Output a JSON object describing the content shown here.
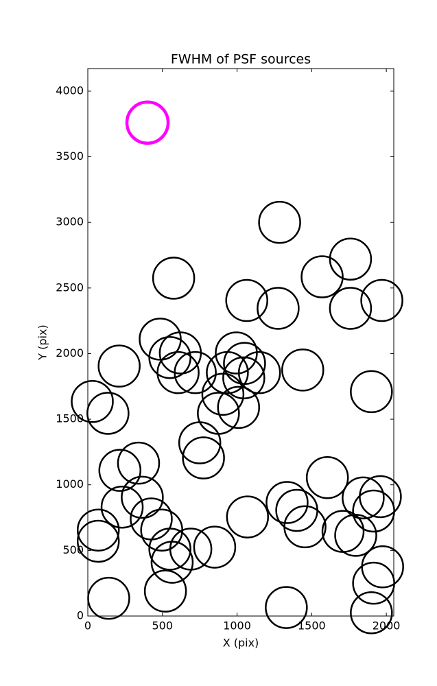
{
  "chart_data": {
    "type": "scatter",
    "title": "FWHM of PSF sources",
    "x_label": "X (pix)",
    "y_label": "Y (pix)",
    "xlim": [
      0,
      2050
    ],
    "ylim": [
      0,
      4172
    ],
    "xticks": [
      0,
      500,
      1000,
      1500,
      2000
    ],
    "yticks": [
      0,
      500,
      1000,
      1500,
      2000,
      2500,
      3000,
      3500,
      4000
    ],
    "grid": false,
    "series": [
      {
        "color": "#000000",
        "x": [
          1285,
          1760,
          1570,
          575,
          1065,
          1275,
          1760,
          1970,
          485,
          550,
          620,
          210,
          605,
          720,
          995,
          1050,
          1150,
          935,
          1045,
          1440,
          1900,
          30,
          135,
          905,
          875,
          1010,
          750,
          775,
          215,
          340,
          1605,
          365,
          230,
          425,
          1845,
          1960,
          1915,
          1335,
          1400,
          1455,
          1070,
          70,
          70,
          495,
          1710,
          1795,
          550,
          690,
          850,
          565,
          1975,
          1915,
          520,
          140,
          1330,
          1900
        ],
        "values": [
          3000,
          2720,
          2585,
          2575,
          2405,
          2345,
          2345,
          2405,
          2110,
          1970,
          2005,
          1905,
          1855,
          1855,
          2005,
          1925,
          1855,
          1855,
          1815,
          1875,
          1710,
          1635,
          1545,
          1690,
          1545,
          1590,
          1320,
          1205,
          1110,
          1165,
          1055,
          905,
          830,
          740,
          900,
          910,
          800,
          865,
          805,
          680,
          755,
          655,
          570,
          655,
          645,
          615,
          510,
          510,
          525,
          410,
          375,
          250,
          190,
          135,
          65,
          25
        ]
      },
      {
        "color": "#ff00ff",
        "x": [
          400
        ],
        "values": [
          3760
        ]
      }
    ]
  }
}
